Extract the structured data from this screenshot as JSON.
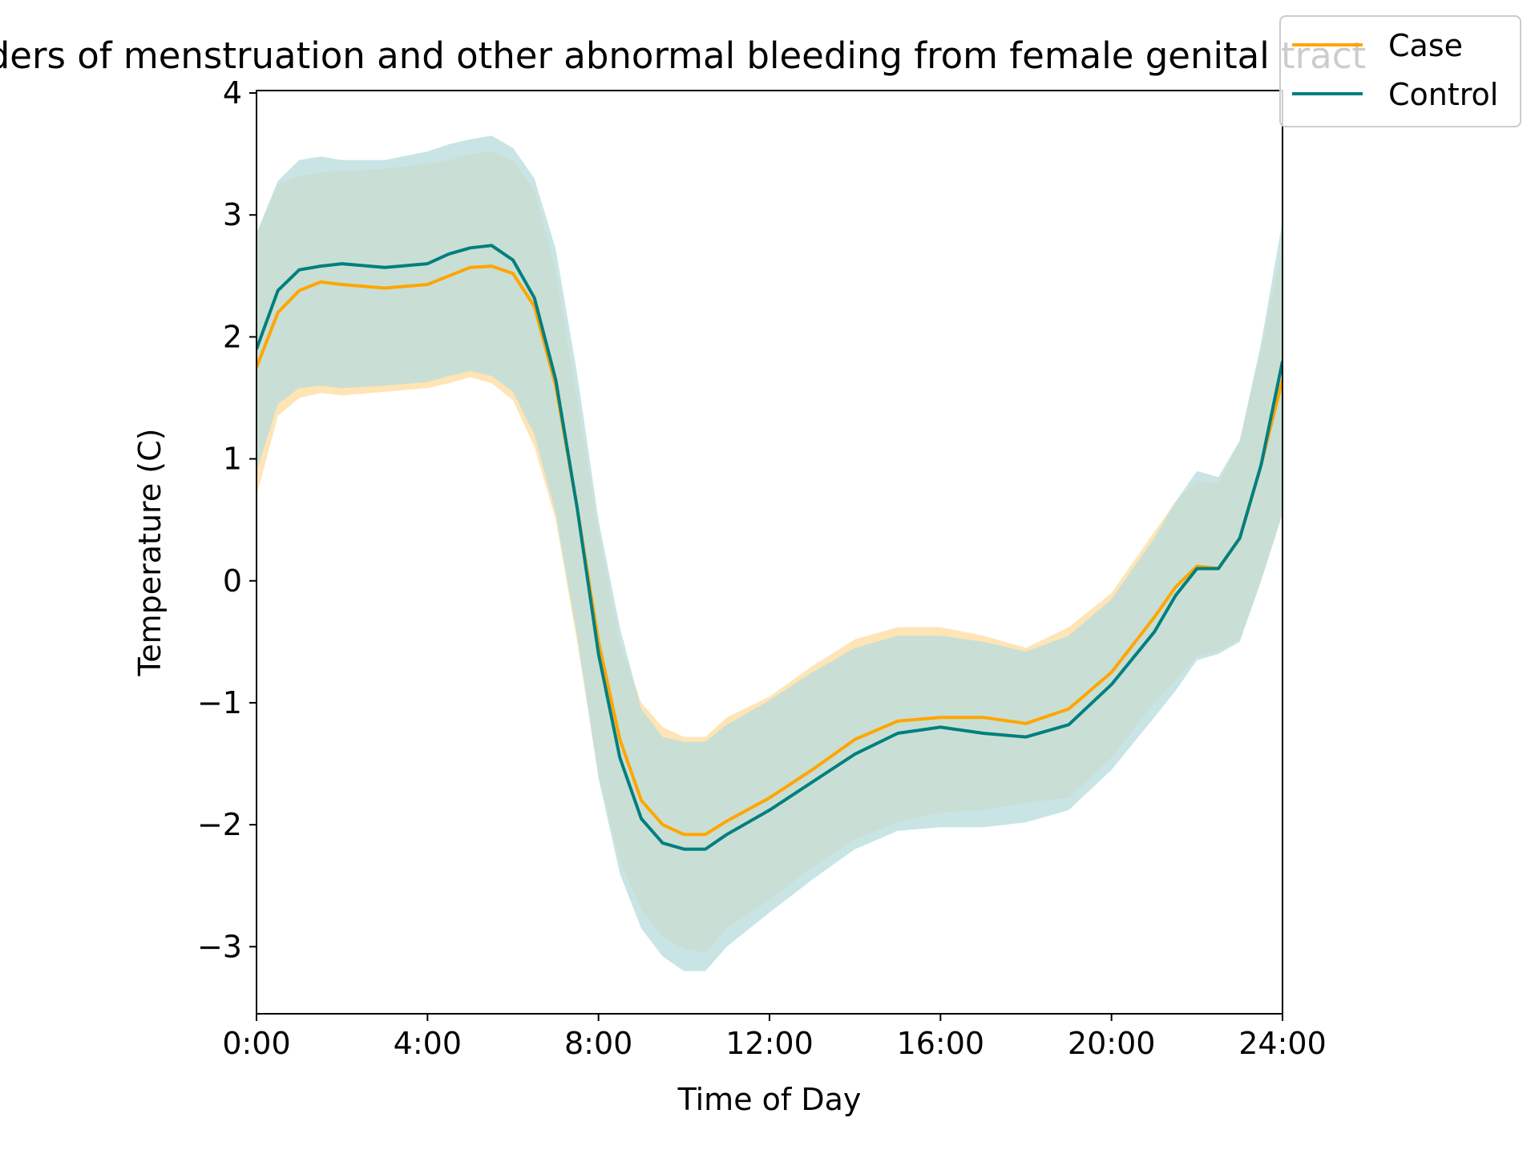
{
  "chart_data": {
    "type": "line",
    "title": "Disorders of menstruation and other abnormal bleeding from female genital tract",
    "xlabel": "Time of Day",
    "ylabel": "Temperature (C)",
    "xlim": [
      0,
      24
    ],
    "ylim": [
      -3.55,
      4.02
    ],
    "xticks": [
      {
        "value": 0,
        "label": "0:00"
      },
      {
        "value": 4,
        "label": "4:00"
      },
      {
        "value": 8,
        "label": "8:00"
      },
      {
        "value": 12,
        "label": "12:00"
      },
      {
        "value": 16,
        "label": "16:00"
      },
      {
        "value": 20,
        "label": "20:00"
      },
      {
        "value": 24,
        "label": "24:00"
      }
    ],
    "yticks": [
      {
        "value": 4,
        "label": "4"
      },
      {
        "value": 3,
        "label": "3"
      },
      {
        "value": 2,
        "label": "2"
      },
      {
        "value": 1,
        "label": "1"
      },
      {
        "value": 0,
        "label": "0"
      },
      {
        "value": -1,
        "label": "−1"
      },
      {
        "value": -2,
        "label": "−2"
      },
      {
        "value": -3,
        "label": "−3"
      }
    ],
    "legend": {
      "position": "top-right"
    },
    "x": [
      0,
      0.5,
      1,
      1.5,
      2,
      3,
      4,
      4.5,
      5,
      5.5,
      6,
      6.5,
      7,
      7.5,
      8,
      8.5,
      9,
      9.5,
      10,
      10.5,
      11,
      12,
      13,
      14,
      15,
      16,
      17,
      18,
      19,
      20,
      21,
      21.5,
      22,
      22.5,
      23,
      23.5,
      24
    ],
    "series": [
      {
        "name": "Case",
        "color": "#FFA500",
        "band_color": "#FFE4B5",
        "values": [
          1.75,
          2.2,
          2.38,
          2.45,
          2.43,
          2.4,
          2.43,
          2.5,
          2.57,
          2.58,
          2.52,
          2.25,
          1.6,
          0.6,
          -0.5,
          -1.3,
          -1.8,
          -2.0,
          -2.08,
          -2.08,
          -1.97,
          -1.78,
          -1.55,
          -1.3,
          -1.15,
          -1.12,
          -1.12,
          -1.17,
          -1.05,
          -0.75,
          -0.3,
          -0.05,
          0.12,
          0.1,
          0.35,
          0.95,
          1.65
        ],
        "upper": [
          2.85,
          3.25,
          3.32,
          3.35,
          3.36,
          3.38,
          3.42,
          3.45,
          3.5,
          3.52,
          3.45,
          3.2,
          2.55,
          1.5,
          0.4,
          -0.5,
          -1.0,
          -1.2,
          -1.28,
          -1.28,
          -1.12,
          -0.95,
          -0.7,
          -0.48,
          -0.38,
          -0.38,
          -0.45,
          -0.55,
          -0.38,
          -0.1,
          0.4,
          0.65,
          0.82,
          0.8,
          1.15,
          1.9,
          2.75
        ],
        "lower": [
          0.7,
          1.35,
          1.5,
          1.54,
          1.52,
          1.55,
          1.58,
          1.62,
          1.67,
          1.62,
          1.48,
          1.1,
          0.5,
          -0.5,
          -1.6,
          -2.3,
          -2.7,
          -2.92,
          -3.02,
          -3.05,
          -2.85,
          -2.62,
          -2.35,
          -2.12,
          -1.98,
          -1.9,
          -1.88,
          -1.82,
          -1.78,
          -1.45,
          -1.0,
          -0.82,
          -0.62,
          -0.58,
          -0.48,
          0.0,
          0.55
        ]
      },
      {
        "name": "Control",
        "color": "#007F7F",
        "band_color": "#BBDDDD",
        "values": [
          1.9,
          2.38,
          2.55,
          2.58,
          2.6,
          2.57,
          2.6,
          2.68,
          2.73,
          2.75,
          2.63,
          2.32,
          1.65,
          0.6,
          -0.6,
          -1.45,
          -1.95,
          -2.15,
          -2.2,
          -2.2,
          -2.08,
          -1.88,
          -1.65,
          -1.42,
          -1.25,
          -1.2,
          -1.25,
          -1.28,
          -1.18,
          -0.85,
          -0.42,
          -0.12,
          0.1,
          0.1,
          0.35,
          0.95,
          1.8
        ],
        "upper": [
          2.85,
          3.28,
          3.45,
          3.48,
          3.45,
          3.45,
          3.52,
          3.58,
          3.62,
          3.65,
          3.55,
          3.3,
          2.72,
          1.7,
          0.5,
          -0.38,
          -1.05,
          -1.28,
          -1.32,
          -1.32,
          -1.18,
          -0.98,
          -0.75,
          -0.55,
          -0.45,
          -0.45,
          -0.5,
          -0.58,
          -0.45,
          -0.15,
          0.35,
          0.65,
          0.9,
          0.85,
          1.15,
          1.95,
          2.95
        ],
        "lower": [
          0.9,
          1.45,
          1.58,
          1.6,
          1.58,
          1.6,
          1.63,
          1.68,
          1.72,
          1.68,
          1.55,
          1.2,
          0.55,
          -0.45,
          -1.62,
          -2.4,
          -2.85,
          -3.08,
          -3.2,
          -3.2,
          -3.0,
          -2.72,
          -2.45,
          -2.2,
          -2.05,
          -2.02,
          -2.02,
          -1.98,
          -1.88,
          -1.55,
          -1.12,
          -0.9,
          -0.65,
          -0.6,
          -0.5,
          0.0,
          0.55
        ]
      }
    ]
  }
}
